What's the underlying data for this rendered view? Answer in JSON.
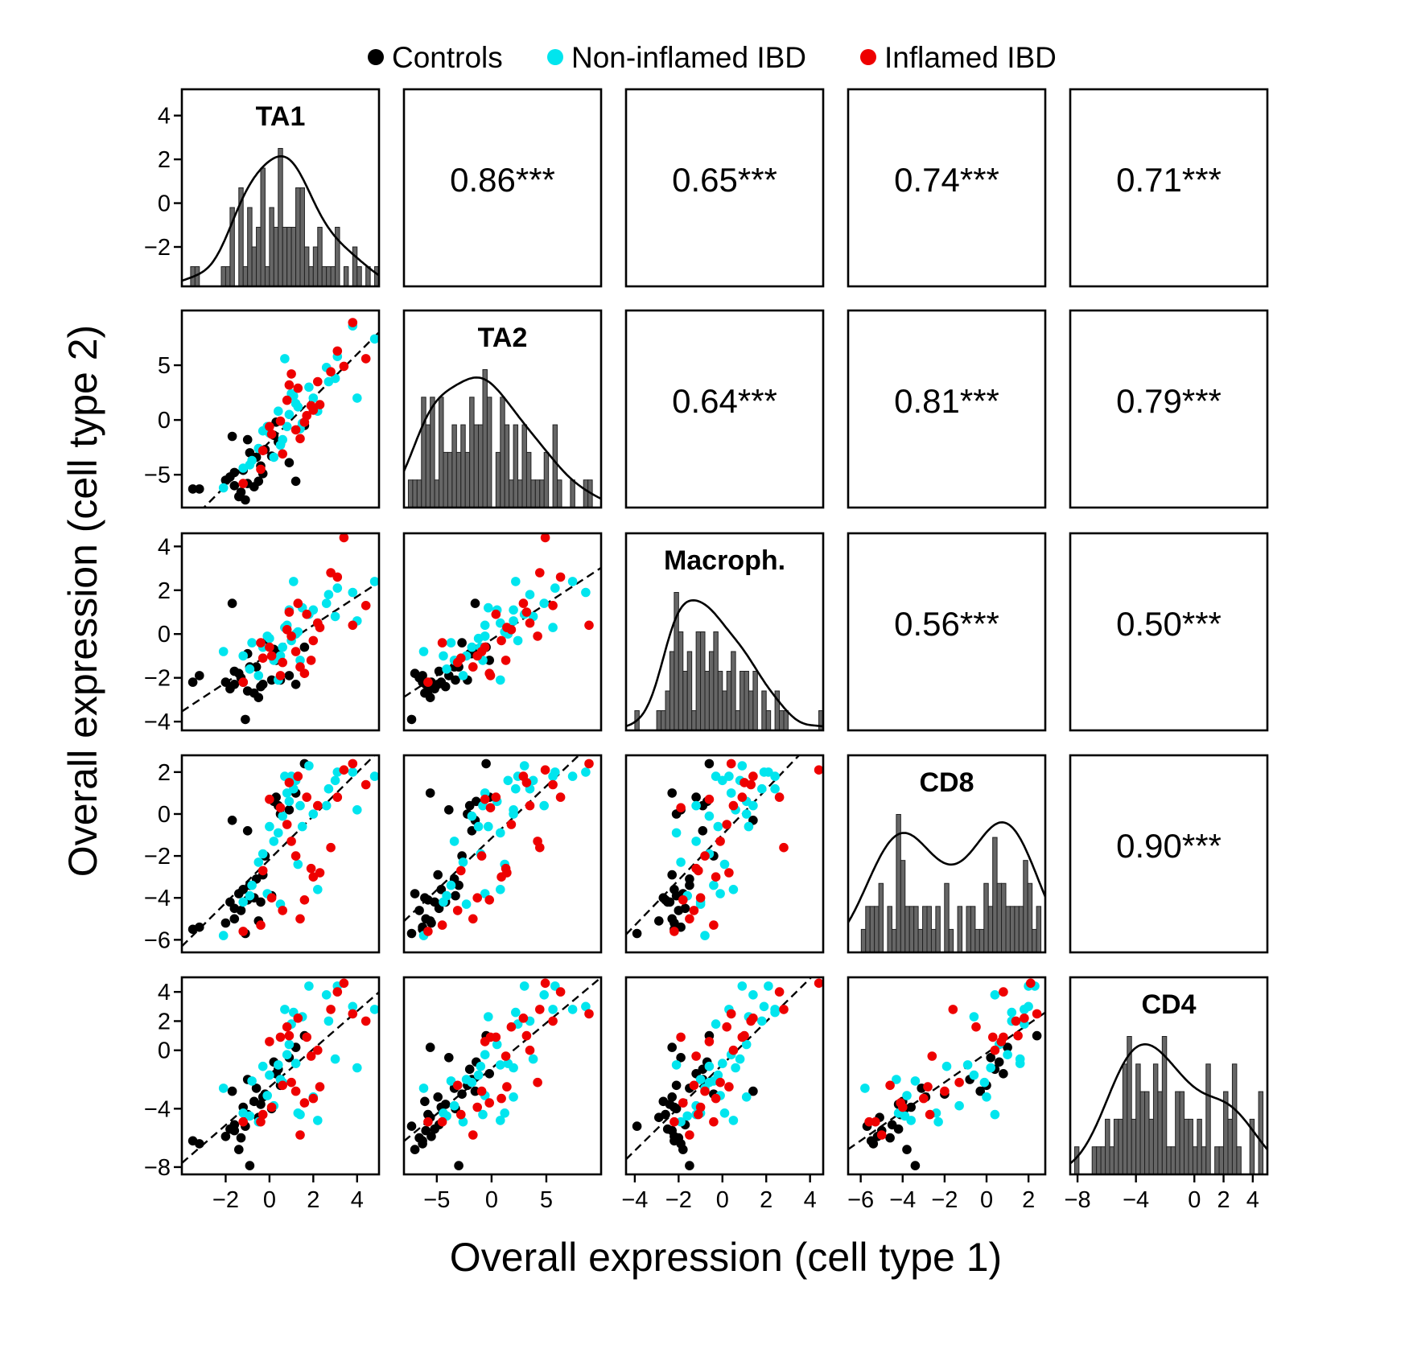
{
  "chart_data": {
    "type": "scatter",
    "xlabel": "Overall expression (cell type 1)",
    "ylabel": "Overall expression (cell type 2)",
    "legend": {
      "placement": "top-center",
      "entries": [
        {
          "name": "Controls",
          "color": "#000000"
        },
        {
          "name": "Non-inflamed IBD",
          "color": "#00e5ee"
        },
        {
          "name": "Inflamed IBD",
          "color": "#ee0000"
        }
      ]
    },
    "cell_types": [
      {
        "name": "TA1",
        "range": [
          -4,
          5
        ],
        "ticks": [
          -2,
          0,
          2,
          4
        ]
      },
      {
        "name": "TA2",
        "range": [
          -8,
          10
        ],
        "ticks": [
          -5,
          0,
          5
        ]
      },
      {
        "name": "Macroph.",
        "range": [
          -4.4,
          4.6
        ],
        "ticks": [
          -4,
          -2,
          0,
          2,
          4
        ]
      },
      {
        "name": "CD8",
        "range": [
          -6.6,
          2.8
        ],
        "ticks": [
          -6,
          -4,
          -2,
          0,
          2
        ]
      },
      {
        "name": "CD4",
        "range": [
          -8.5,
          5
        ],
        "ticks": [
          -8,
          -4,
          0,
          2,
          4
        ]
      }
    ],
    "diagonal_left_ticks": [
      -2,
      0,
      2,
      4
    ],
    "diagonal_left_range": [
      -3.8,
      5.2
    ],
    "correlations": [
      {
        "row": 0,
        "col": 1,
        "label": "0.86***"
      },
      {
        "row": 0,
        "col": 2,
        "label": "0.65***"
      },
      {
        "row": 0,
        "col": 3,
        "label": "0.74***"
      },
      {
        "row": 0,
        "col": 4,
        "label": "0.71***"
      },
      {
        "row": 1,
        "col": 2,
        "label": "0.64***"
      },
      {
        "row": 1,
        "col": 3,
        "label": "0.81***"
      },
      {
        "row": 1,
        "col": 4,
        "label": "0.79***"
      },
      {
        "row": 2,
        "col": 3,
        "label": "0.56***"
      },
      {
        "row": 2,
        "col": 4,
        "label": "0.50***"
      },
      {
        "row": 3,
        "col": 4,
        "label": "0.90***"
      }
    ],
    "samples": [
      {
        "group": 0,
        "v": [
          -3.5,
          -6.3,
          -2.2,
          -5.5,
          -6.2
        ]
      },
      {
        "group": 0,
        "v": [
          -3.2,
          -6.3,
          -1.9,
          -5.4,
          -6.4
        ]
      },
      {
        "group": 0,
        "v": [
          -2.0,
          -5.5,
          -2.2,
          -5.2,
          -5.9
        ]
      },
      {
        "group": 0,
        "v": [
          -1.6,
          -4.8,
          -1.7,
          -4.5,
          -5.1
        ]
      },
      {
        "group": 0,
        "v": [
          -1.8,
          -5.2,
          -2.5,
          -4.2,
          -5.4
        ]
      },
      {
        "group": 0,
        "v": [
          -1.3,
          -6.6,
          -2.0,
          -4.6,
          -6.0
        ]
      },
      {
        "group": 0,
        "v": [
          -1.6,
          -6.0,
          -2.3,
          -5.0,
          -5.5
        ]
      },
      {
        "group": 0,
        "v": [
          -1.0,
          -5.8,
          -2.6,
          -4.1,
          -4.4
        ]
      },
      {
        "group": 0,
        "v": [
          -1.4,
          -7.0,
          -1.8,
          -3.8,
          -6.8
        ]
      },
      {
        "group": 0,
        "v": [
          -1.2,
          -4.6,
          -2.2,
          -3.6,
          -3.9
        ]
      },
      {
        "group": 0,
        "v": [
          -0.7,
          -6.1,
          -2.7,
          -4.0,
          -3.5
        ]
      },
      {
        "group": 0,
        "v": [
          -0.3,
          -4.9,
          -2.3,
          -2.9,
          -3.2
        ]
      },
      {
        "group": 0,
        "v": [
          -0.9,
          -3.0,
          -1.5,
          -3.4,
          -7.9
        ]
      },
      {
        "group": 0,
        "v": [
          -1.1,
          -7.3,
          -3.9,
          -5.7,
          -5.2
        ]
      },
      {
        "group": 0,
        "v": [
          -0.5,
          -5.6,
          -2.9,
          -5.1,
          -4.6
        ]
      },
      {
        "group": 0,
        "v": [
          -1.7,
          -1.5,
          1.4,
          -0.3,
          -2.8
        ]
      },
      {
        "group": 0,
        "v": [
          -0.4,
          -4.2,
          -2.4,
          -4.2,
          -3.7
        ]
      },
      {
        "group": 0,
        "v": [
          -0.2,
          -2.7,
          -0.4,
          -2.0,
          -3.0
        ]
      },
      {
        "group": 0,
        "v": [
          0.3,
          -0.2,
          -1.2,
          0.8,
          -1.6
        ]
      },
      {
        "group": 0,
        "v": [
          0.5,
          -2.2,
          -2.1,
          0.0,
          -2.4
        ]
      },
      {
        "group": 0,
        "v": [
          0.2,
          -1.4,
          -0.7,
          0.6,
          -0.8
        ]
      },
      {
        "group": 0,
        "v": [
          0.4,
          -2.0,
          -0.9,
          0.4,
          -1.3
        ]
      },
      {
        "group": 0,
        "v": [
          0.9,
          -3.9,
          -1.9,
          0.2,
          -0.5
        ]
      },
      {
        "group": 0,
        "v": [
          1.2,
          -5.6,
          -2.3,
          1.0,
          0.2
        ]
      },
      {
        "group": 0,
        "v": [
          1.6,
          -0.5,
          -0.6,
          2.4,
          1.0
        ]
      },
      {
        "group": 0,
        "v": [
          -1.0,
          -1.8,
          -0.9,
          -0.8,
          -2.0
        ]
      },
      {
        "group": 0,
        "v": [
          -0.6,
          -3.4,
          -1.5,
          -3.1,
          -2.6
        ]
      },
      {
        "group": 0,
        "v": [
          0.1,
          -3.3,
          -2.1,
          -3.9,
          -4.0
        ]
      },
      {
        "group": 1,
        "v": [
          -2.1,
          -6.2,
          -0.8,
          -5.8,
          -2.6
        ]
      },
      {
        "group": 1,
        "v": [
          -1.2,
          -4.4,
          -1.0,
          -4.2,
          -4.3
        ]
      },
      {
        "group": 1,
        "v": [
          -0.8,
          -3.7,
          -0.4,
          -3.4,
          -2.1
        ]
      },
      {
        "group": 1,
        "v": [
          -0.5,
          -2.6,
          -1.9,
          -2.3,
          -4.9
        ]
      },
      {
        "group": 1,
        "v": [
          0.0,
          -1.2,
          -0.2,
          -0.6,
          -1.7
        ]
      },
      {
        "group": 1,
        "v": [
          0.2,
          -3.4,
          -1.2,
          -1.3,
          -3.8
        ]
      },
      {
        "group": 1,
        "v": [
          0.6,
          -1.8,
          -0.6,
          -0.1,
          -2.2
        ]
      },
      {
        "group": 1,
        "v": [
          0.8,
          -0.6,
          0.4,
          1.0,
          -0.3
        ]
      },
      {
        "group": 1,
        "v": [
          0.9,
          0.5,
          1.1,
          0.6,
          0.4
        ]
      },
      {
        "group": 1,
        "v": [
          1.2,
          1.5,
          0.0,
          1.6,
          -0.9
        ]
      },
      {
        "group": 1,
        "v": [
          1.4,
          -0.8,
          -1.2,
          0.4,
          -4.4
        ]
      },
      {
        "group": 1,
        "v": [
          0.7,
          5.6,
          0.3,
          1.8,
          2.8
        ]
      },
      {
        "group": 1,
        "v": [
          1.0,
          2.4,
          -0.3,
          1.8,
          1.8
        ]
      },
      {
        "group": 1,
        "v": [
          1.5,
          -0.3,
          1.2,
          -0.6,
          2.3
        ]
      },
      {
        "group": 1,
        "v": [
          2.0,
          2.0,
          1.1,
          0.0,
          -3.2
        ]
      },
      {
        "group": 1,
        "v": [
          2.2,
          0.8,
          0.5,
          -3.6,
          -4.8
        ]
      },
      {
        "group": 1,
        "v": [
          2.7,
          3.5,
          1.8,
          1.2,
          2.0
        ]
      },
      {
        "group": 1,
        "v": [
          3.0,
          3.8,
          0.8,
          1.6,
          -0.6
        ]
      },
      {
        "group": 1,
        "v": [
          3.1,
          5.8,
          2.1,
          2.0,
          4.4
        ]
      },
      {
        "group": 1,
        "v": [
          3.8,
          8.6,
          1.9,
          2.0,
          3.0
        ]
      },
      {
        "group": 1,
        "v": [
          4.0,
          2.0,
          0.6,
          0.2,
          -1.2
        ]
      },
      {
        "group": 1,
        "v": [
          4.8,
          7.4,
          2.4,
          1.8,
          2.8
        ]
      },
      {
        "group": 1,
        "v": [
          2.6,
          4.8,
          1.4,
          0.4,
          3.8
        ]
      },
      {
        "group": 1,
        "v": [
          1.8,
          3.0,
          0.9,
          2.3,
          4.4
        ]
      },
      {
        "group": 1,
        "v": [
          -0.3,
          -1.0,
          -0.6,
          -1.9,
          -1.1
        ]
      },
      {
        "group": 1,
        "v": [
          -0.1,
          -0.6,
          -0.1,
          -3.8,
          -3.1
        ]
      },
      {
        "group": 1,
        "v": [
          0.5,
          -2.3,
          -1.0,
          -4.3,
          -2.0
        ]
      },
      {
        "group": 1,
        "v": [
          1.3,
          1.2,
          0.1,
          -2.4,
          -4.3
        ]
      },
      {
        "group": 1,
        "v": [
          0.4,
          0.8,
          -2.1,
          -0.9,
          -1.0
        ]
      },
      {
        "group": 1,
        "v": [
          1.1,
          2.2,
          2.4,
          1.2,
          2.6
        ]
      },
      {
        "group": 1,
        "v": [
          -0.9,
          -4.1,
          -1.6,
          -3.9,
          -4.5
        ]
      },
      {
        "group": 2,
        "v": [
          -1.2,
          -5.8,
          -2.2,
          -5.6,
          -4.9
        ]
      },
      {
        "group": 2,
        "v": [
          -0.3,
          -2.8,
          -1.1,
          -2.7,
          -4.4
        ]
      },
      {
        "group": 2,
        "v": [
          0.0,
          -0.6,
          -0.6,
          0.7,
          0.6
        ]
      },
      {
        "group": 2,
        "v": [
          0.5,
          -0.1,
          -1.9,
          0.3,
          0.9
        ]
      },
      {
        "group": 2,
        "v": [
          0.8,
          1.8,
          0.2,
          -0.5,
          1.6
        ]
      },
      {
        "group": 2,
        "v": [
          1.0,
          4.2,
          -0.1,
          -1.3,
          -2.2
        ]
      },
      {
        "group": 2,
        "v": [
          1.2,
          -0.9,
          -0.8,
          -2.0,
          -2.8
        ]
      },
      {
        "group": 2,
        "v": [
          1.3,
          2.9,
          1.4,
          1.8,
          2.2
        ]
      },
      {
        "group": 2,
        "v": [
          1.6,
          -0.2,
          -1.8,
          -4.1,
          -3.6
        ]
      },
      {
        "group": 2,
        "v": [
          1.7,
          0.4,
          0.9,
          0.8,
          0.9
        ]
      },
      {
        "group": 2,
        "v": [
          1.9,
          1.3,
          -1.2,
          -2.6,
          -0.4
        ]
      },
      {
        "group": 2,
        "v": [
          2.2,
          3.5,
          0.5,
          0.4,
          0.0
        ]
      },
      {
        "group": 2,
        "v": [
          2.3,
          1.4,
          0.3,
          -2.8,
          -2.5
        ]
      },
      {
        "group": 2,
        "v": [
          2.8,
          4.4,
          2.8,
          -1.6,
          2.8
        ]
      },
      {
        "group": 2,
        "v": [
          3.4,
          4.9,
          4.4,
          2.1,
          4.6
        ]
      },
      {
        "group": 2,
        "v": [
          3.8,
          8.9,
          0.4,
          2.4,
          2.5
        ]
      },
      {
        "group": 2,
        "v": [
          4.4,
          5.6,
          1.3,
          1.4,
          2.0
        ]
      },
      {
        "group": 2,
        "v": [
          1.4,
          -1.7,
          -1.5,
          -5.0,
          -5.8
        ]
      },
      {
        "group": 2,
        "v": [
          0.1,
          -1.3,
          -1.0,
          -4.0,
          -3.9
        ]
      },
      {
        "group": 2,
        "v": [
          0.9,
          3.2,
          1.0,
          1.5,
          1.0
        ]
      },
      {
        "group": 2,
        "v": [
          2.0,
          0.9,
          -0.3,
          -3.0,
          -3.3
        ]
      },
      {
        "group": 2,
        "v": [
          3.1,
          6.3,
          2.6,
          0.8,
          4.0
        ]
      },
      {
        "group": 2,
        "v": [
          -0.4,
          -4.5,
          -0.4,
          -5.3,
          -4.9
        ]
      },
      {
        "group": 2,
        "v": [
          0.6,
          -3.1,
          -1.3,
          -4.6,
          -2.4
        ]
      }
    ]
  }
}
